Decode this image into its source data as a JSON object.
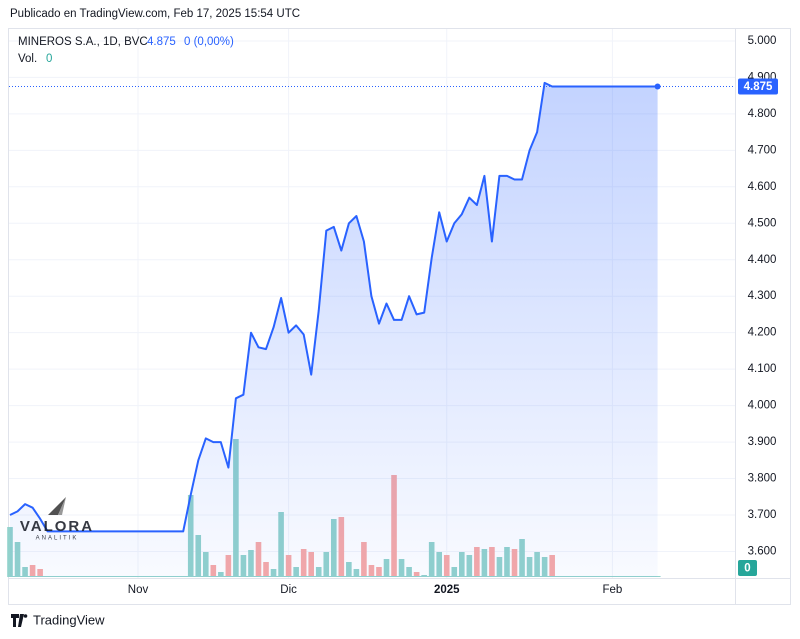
{
  "header": {
    "published": "Publicado en TradingView.com, Feb 17, 2025 15:54 UTC"
  },
  "watermark": {
    "brand": "VALORA",
    "sub": "ANALITIK"
  },
  "footer": {
    "logo_text": "TradingView"
  },
  "chart_data": {
    "type": "line",
    "change": "0 (0,00%)",
    "categories": [
      null,
      null,
      null,
      null,
      null,
      null,
      null,
      null,
      null,
      null,
      null,
      null,
      null,
      null,
      null,
      null,
      null,
      "Nov",
      null,
      null,
      null,
      null,
      null,
      null,
      null,
      null,
      null,
      null,
      null,
      null,
      null,
      null,
      null,
      null,
      null,
      null,
      null,
      "Dic",
      null,
      null,
      null,
      null,
      null,
      null,
      null,
      null,
      null,
      null,
      null,
      null,
      null,
      null,
      null,
      null,
      null,
      null,
      null,
      null,
      "2025",
      null,
      null,
      null,
      null,
      null,
      null,
      null,
      null,
      null,
      null,
      null,
      null,
      null,
      null,
      null,
      null,
      null,
      null,
      null,
      null,
      null,
      "Feb",
      null,
      null,
      null,
      null,
      null,
      null
    ],
    "series": [
      {
        "name": "MINEROS S.A., 1D, BVC",
        "color": "#2962ff",
        "values": [
          3.7,
          3.71,
          3.73,
          3.72,
          3.69,
          3.655,
          3.655,
          3.655,
          3.655,
          3.655,
          3.655,
          3.655,
          3.655,
          3.655,
          3.655,
          3.655,
          3.655,
          3.655,
          3.655,
          3.655,
          3.655,
          3.655,
          3.655,
          3.655,
          3.755,
          3.85,
          3.91,
          3.9,
          3.9,
          3.83,
          4.02,
          4.03,
          4.2,
          4.16,
          4.155,
          4.215,
          4.295,
          4.2,
          4.22,
          4.195,
          4.085,
          4.26,
          4.48,
          4.49,
          4.425,
          4.5,
          4.52,
          4.45,
          4.3,
          4.225,
          4.28,
          4.235,
          4.235,
          4.3,
          4.25,
          4.255,
          4.405,
          4.53,
          4.45,
          4.5,
          4.525,
          4.57,
          4.55,
          4.63,
          4.45,
          4.63,
          4.63,
          4.62,
          4.62,
          4.7,
          4.75,
          4.885,
          4.875,
          4.875,
          4.875,
          4.875,
          4.875,
          4.875,
          4.875,
          4.875,
          4.875,
          4.875,
          4.875,
          4.875,
          4.875,
          4.875,
          4.875
        ]
      }
    ],
    "volume": {
      "name": "Vol.",
      "values": [
        50,
        35,
        10,
        12,
        8,
        1,
        1,
        1,
        1,
        1,
        1,
        1,
        1,
        1,
        1,
        1,
        1,
        1,
        1,
        1,
        1,
        1,
        1,
        1,
        82,
        42,
        25,
        12,
        5,
        22,
        138,
        22,
        27,
        35,
        15,
        8,
        65,
        22,
        10,
        28,
        25,
        10,
        25,
        58,
        60,
        15,
        8,
        35,
        12,
        10,
        18,
        102,
        18,
        10,
        5,
        2,
        35,
        25,
        22,
        10,
        25,
        22,
        30,
        28,
        30,
        20,
        30,
        28,
        38,
        20,
        25,
        20,
        22,
        0,
        0,
        0,
        0,
        0,
        0,
        0,
        0,
        0,
        0,
        0,
        0,
        0,
        0
      ]
    },
    "ylim": [
      3.53,
      5.03
    ],
    "yticks": [
      {
        "value": 3.6,
        "label": "3.600"
      },
      {
        "value": 3.7,
        "label": "3.700"
      },
      {
        "value": 3.8,
        "label": "3.800"
      },
      {
        "value": 3.9,
        "label": "3.900"
      },
      {
        "value": 4.0,
        "label": "4.000"
      },
      {
        "value": 4.1,
        "label": "4.100"
      },
      {
        "value": 4.2,
        "label": "4.200"
      },
      {
        "value": 4.3,
        "label": "4.300"
      },
      {
        "value": 4.4,
        "label": "4.400"
      },
      {
        "value": 4.5,
        "label": "4.500"
      },
      {
        "value": 4.6,
        "label": "4.600"
      },
      {
        "value": 4.7,
        "label": "4.700"
      },
      {
        "value": 4.8,
        "label": "4.800"
      },
      {
        "value": 4.9,
        "label": "4.900"
      },
      {
        "value": 5.0,
        "label": "5.000"
      }
    ],
    "grid": true
  }
}
